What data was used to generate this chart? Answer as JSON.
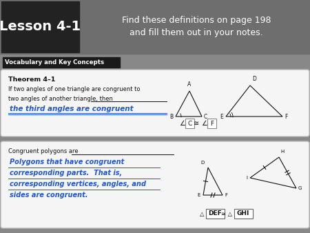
{
  "bg_color": "#888888",
  "header_gradient_left": "#3a3a3a",
  "header_gradient_right": "#777777",
  "lesson_box_bg": "#222222",
  "lesson_text": "Lesson 4-1",
  "header_line1": "Find these definitions on page 198",
  "header_line2": "and fill them out in your notes.",
  "vocab_label": "Vocabulary and Key Concepts",
  "vocab_label_bg": "#1a1a1a",
  "card1_bg": "#f5f5f5",
  "card2_bg": "#f5f5f5",
  "theorem_title": "Theorem 4–1",
  "theorem_text1": "If two angles of one triangle are congruent to",
  "theorem_text2": "two angles of another triangle, then",
  "theorem_answer": "the third angles are congruent",
  "congruent_label": "Congruent polygons are",
  "congruent_answer1": "Polygons that have congruent",
  "congruent_answer2": "corresponding parts.  That is,",
  "congruent_answer3": "corresponding vertices, angles, and",
  "congruent_answer4": "sides are congruent.",
  "answer_color": "#2255cc",
  "white": "#ffffff",
  "black": "#111111",
  "dark_gray": "#222222",
  "fig_w": 4.5,
  "fig_h": 3.38,
  "dpi": 100
}
